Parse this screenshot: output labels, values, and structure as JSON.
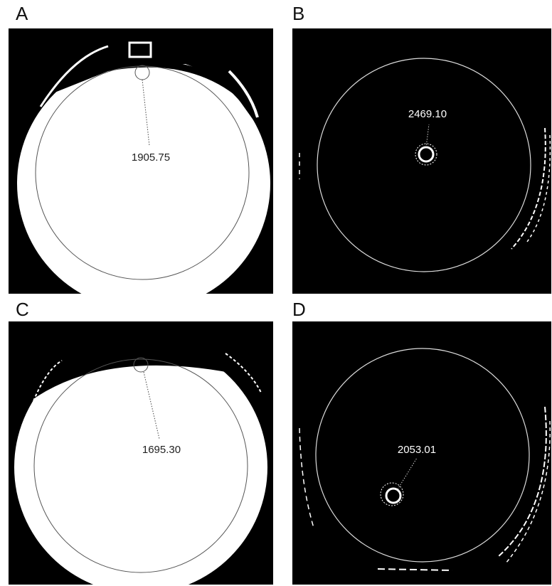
{
  "panels": [
    {
      "label": "A",
      "value": "1905.75"
    },
    {
      "label": "B",
      "value": "2469.10"
    },
    {
      "label": "C",
      "value": "1695.30"
    },
    {
      "label": "D",
      "value": "2053.01"
    }
  ]
}
